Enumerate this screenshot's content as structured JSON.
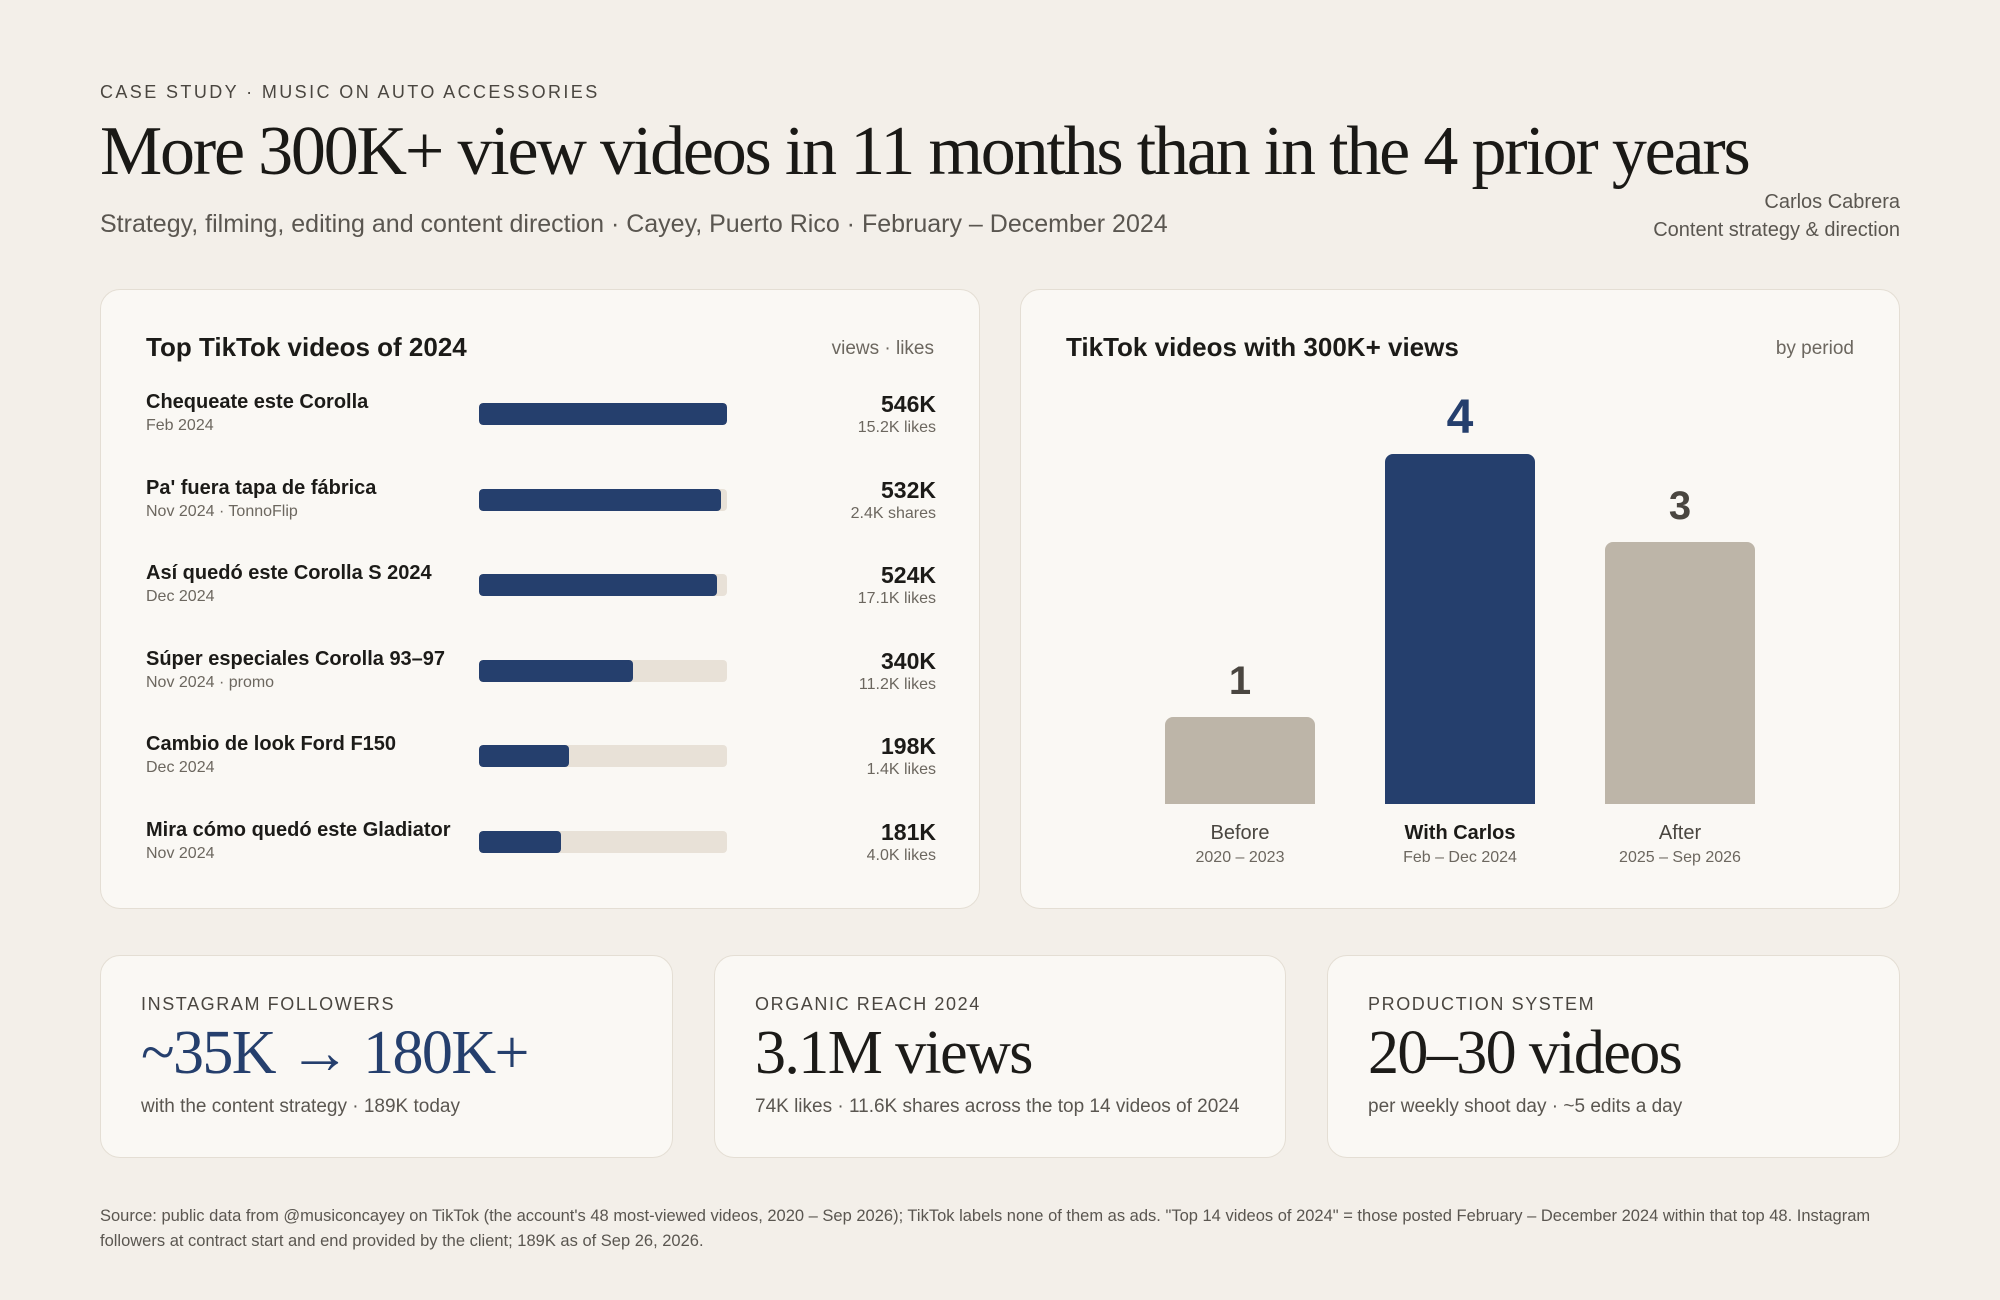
{
  "header": {
    "eyebrow": "CASE STUDY · MUSIC ON AUTO ACCESSORIES",
    "title": "More 300K+ view videos in 11 months than in the 4 prior years",
    "subtitle": "Strategy, filming, editing and content direction · Cayey, Puerto Rico · February – December 2024",
    "credit_name": "Carlos Cabrera",
    "credit_role": "Content strategy & direction"
  },
  "top_videos": {
    "title": "Top TikTok videos of 2024",
    "note": "views · likes"
  },
  "period_chart": {
    "title": "TikTok videos with 300K+ views",
    "note": "by period"
  },
  "stats": [
    {
      "eyebrow": "INSTAGRAM FOLLOWERS",
      "big": "~35K → 180K+",
      "note": "with the content strategy · 189K today",
      "color": "#253f6d"
    },
    {
      "eyebrow": "ORGANIC REACH 2024",
      "big": "3.1M views",
      "note": "74K likes · 11.6K shares across the top 14 videos of 2024",
      "color": "#1c1b18"
    },
    {
      "eyebrow": "PRODUCTION SYSTEM",
      "big": "20–30 videos",
      "note": "per weekly shoot day · ~5 edits a day",
      "color": "#1c1b18"
    }
  ],
  "source": "Source: public data from @musiconcayey on TikTok (the account's 48 most-viewed videos, 2020 – Sep 2026); TikTok labels none of them as ads. \"Top 14 videos of 2024\" = those posted February – December 2024 within that top 48. Instagram followers at contract start and end provided by the client; 189K as of Sep 26, 2026.",
  "colors": {
    "accent": "#253f6d",
    "muted_bar": "#bdb5a8",
    "track": "#e8e1d7",
    "background": "#f3efe9"
  },
  "chart_data": [
    {
      "type": "bar",
      "orientation": "horizontal",
      "title": "Top TikTok videos of 2024",
      "categories": [
        "Chequeate este Corolla",
        "Pa' fuera tapa de fábrica",
        "Así quedó este Corolla S 2024",
        "Súper especiales Corolla 93–97",
        "Cambio de look Ford F150",
        "Mira cómo quedó este Gladiator"
      ],
      "dates": [
        "Feb 2024",
        "Nov 2024 · TonnoFlip",
        "Dec 2024",
        "Nov 2024 · promo",
        "Dec 2024",
        "Nov 2024"
      ],
      "values": [
        546,
        532,
        524,
        340,
        198,
        181
      ],
      "value_labels": [
        "546K",
        "532K",
        "524K",
        "340K",
        "198K",
        "181K"
      ],
      "secondary_labels": [
        "15.2K likes",
        "2.4K shares",
        "17.1K likes",
        "11.2K likes",
        "1.4K likes",
        "4.0K likes"
      ],
      "xlim": [
        0,
        546
      ]
    },
    {
      "type": "bar",
      "title": "TikTok videos with 300K+ views",
      "categories": [
        "Before",
        "With Carlos",
        "After"
      ],
      "ranges": [
        "2020 – 2023",
        "Feb – Dec 2024",
        "2025 – Sep 2026"
      ],
      "values": [
        1,
        4,
        3
      ],
      "highlight": "With Carlos",
      "ylim": [
        0,
        4
      ]
    }
  ]
}
